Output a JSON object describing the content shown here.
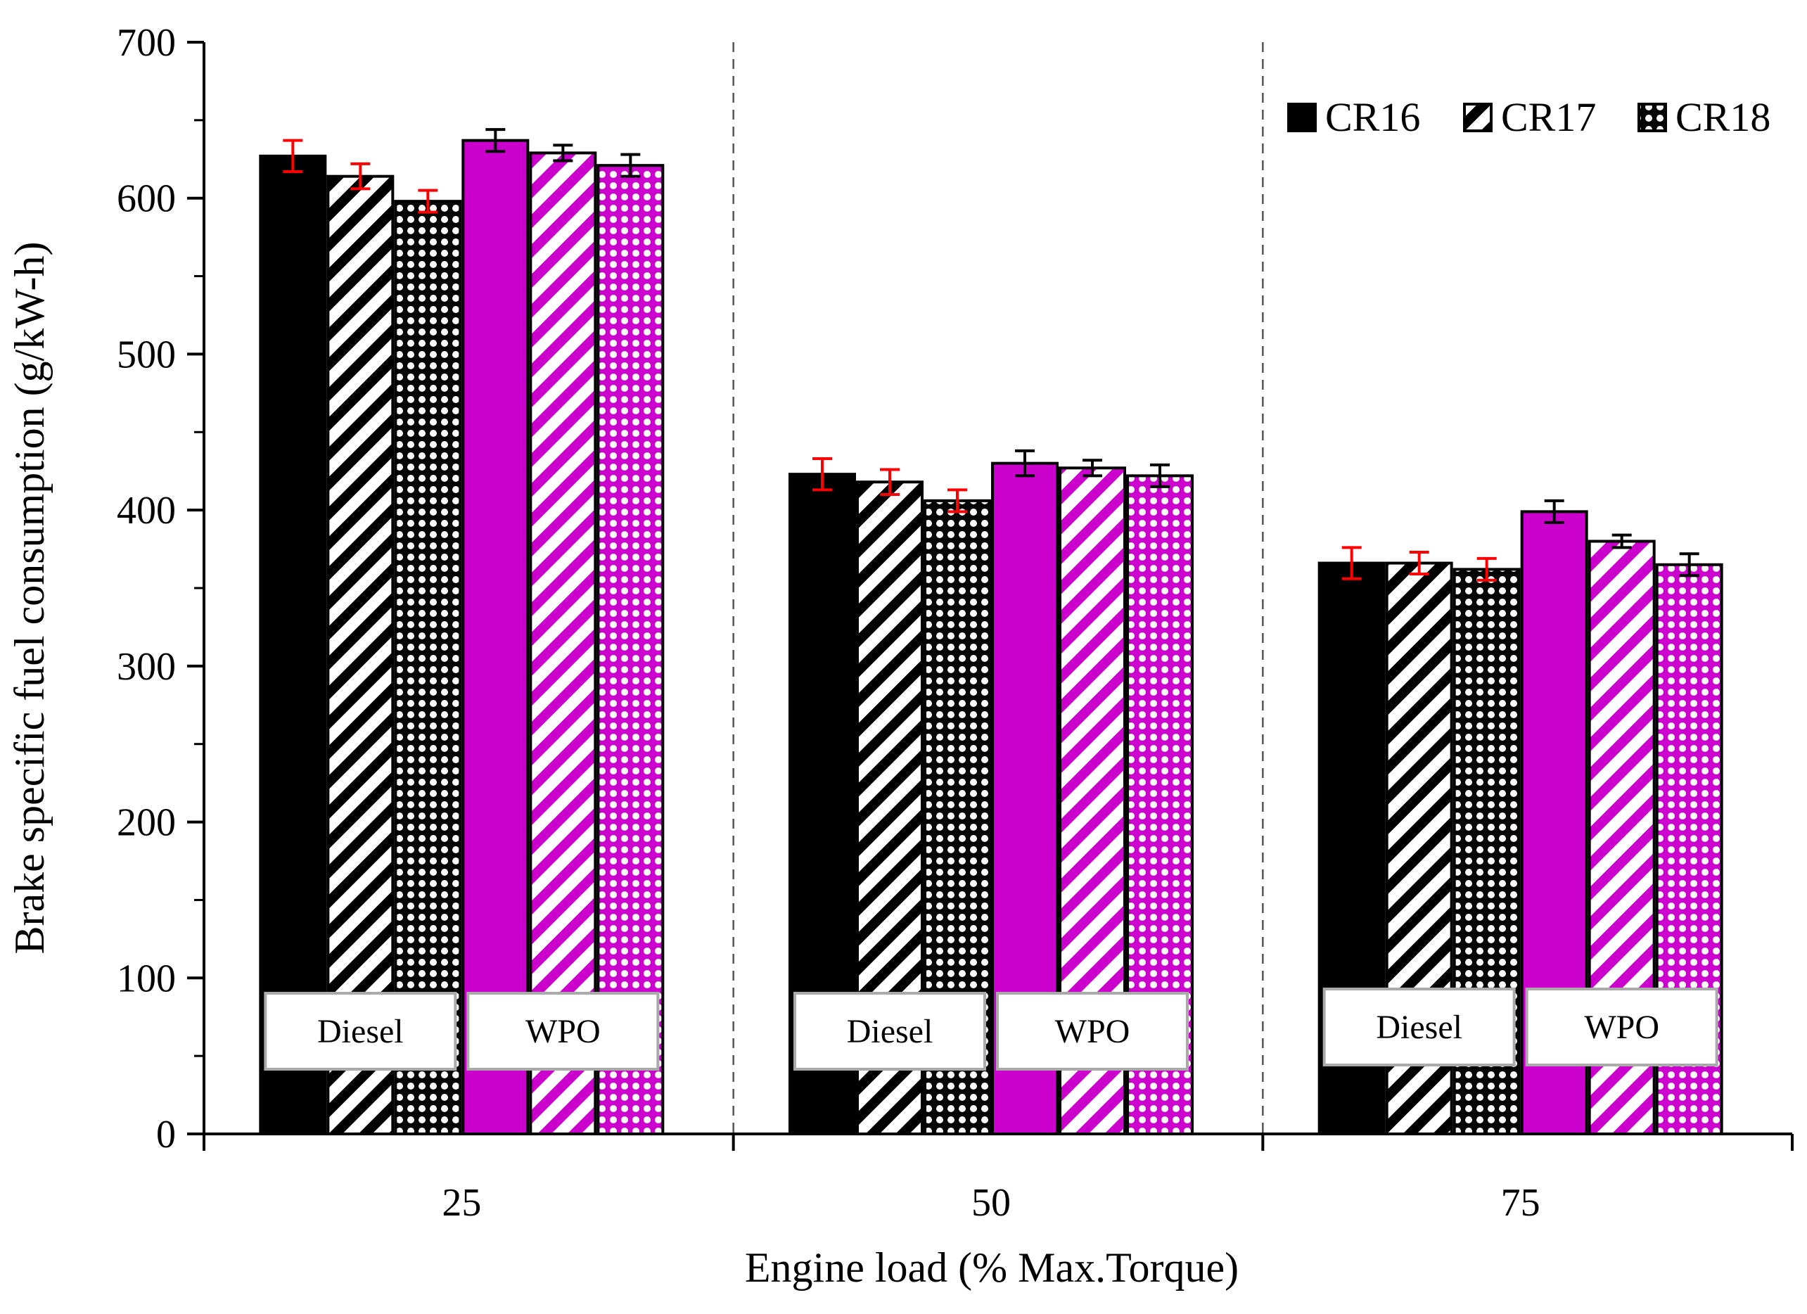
{
  "chart_data": {
    "type": "bar",
    "title": "",
    "xlabel": "Engine load (% Max.Torque)",
    "ylabel": "Brake specific fuel consumption (g/kW-h)",
    "ylim": [
      0,
      700
    ],
    "yticks": [
      0,
      100,
      200,
      300,
      400,
      500,
      600,
      700
    ],
    "categories": [
      "25",
      "50",
      "75"
    ],
    "fuel_groups": [
      "Diesel",
      "WPO"
    ],
    "series": [
      {
        "fuel": "Diesel",
        "cr": "CR16",
        "pattern": "solid",
        "color": "#000000",
        "error_color": "#ff0000",
        "values": [
          627,
          423,
          366
        ],
        "errors": [
          10,
          10,
          10
        ]
      },
      {
        "fuel": "Diesel",
        "cr": "CR17",
        "pattern": "diagonal",
        "color": "#000000",
        "error_color": "#ff0000",
        "values": [
          614,
          418,
          366
        ],
        "errors": [
          8,
          8,
          7
        ]
      },
      {
        "fuel": "Diesel",
        "cr": "CR18",
        "pattern": "dots",
        "color": "#000000",
        "error_color": "#ff0000",
        "values": [
          598,
          406,
          362
        ],
        "errors": [
          7,
          7,
          7
        ]
      },
      {
        "fuel": "WPO",
        "cr": "CR16",
        "pattern": "solid",
        "color": "#cc00cc",
        "error_color": "#000000",
        "values": [
          637,
          430,
          399
        ],
        "errors": [
          7,
          8,
          7
        ]
      },
      {
        "fuel": "WPO",
        "cr": "CR17",
        "pattern": "diagonal",
        "color": "#cc00cc",
        "error_color": "#000000",
        "values": [
          629,
          427,
          380
        ],
        "errors": [
          5,
          5,
          4
        ]
      },
      {
        "fuel": "WPO",
        "cr": "CR18",
        "pattern": "dots",
        "color": "#cc00cc",
        "error_color": "#000000",
        "values": [
          621,
          422,
          365
        ],
        "errors": [
          7,
          7,
          7
        ]
      }
    ],
    "legend": {
      "placement": "top-right",
      "items": [
        {
          "label": "CR16",
          "pattern": "solid"
        },
        {
          "label": "CR17",
          "pattern": "diagonal"
        },
        {
          "label": "CR18",
          "pattern": "dots"
        }
      ]
    },
    "grid": false
  }
}
